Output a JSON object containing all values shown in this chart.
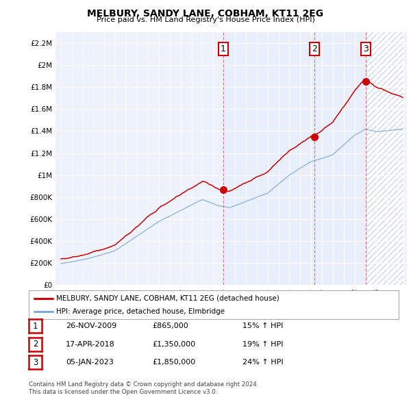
{
  "title": "MELBURY, SANDY LANE, COBHAM, KT11 2EG",
  "subtitle": "Price paid vs. HM Land Registry's House Price Index (HPI)",
  "legend_label_red": "MELBURY, SANDY LANE, COBHAM, KT11 2EG (detached house)",
  "legend_label_blue": "HPI: Average price, detached house, Elmbridge",
  "footer1": "Contains HM Land Registry data © Crown copyright and database right 2024.",
  "footer2": "This data is licensed under the Open Government Licence v3.0.",
  "ylim": [
    0,
    2300000
  ],
  "yticks": [
    0,
    200000,
    400000,
    600000,
    800000,
    1000000,
    1200000,
    1400000,
    1600000,
    1800000,
    2000000,
    2200000
  ],
  "ytick_labels": [
    "£0",
    "£200K",
    "£400K",
    "£600K",
    "£800K",
    "£1M",
    "£1.2M",
    "£1.4M",
    "£1.6M",
    "£1.8M",
    "£2M",
    "£2.2M"
  ],
  "sale_markers": [
    {
      "date_num": 2009.9,
      "price": 865000,
      "label": "1"
    },
    {
      "date_num": 2018.3,
      "price": 1350000,
      "label": "2"
    },
    {
      "date_num": 2023.0,
      "price": 1850000,
      "label": "3"
    }
  ],
  "table_rows": [
    {
      "num": "1",
      "date": "26-NOV-2009",
      "price": "£865,000",
      "hpi": "15% ↑ HPI"
    },
    {
      "num": "2",
      "date": "17-APR-2018",
      "price": "£1,350,000",
      "hpi": "19% ↑ HPI"
    },
    {
      "num": "3",
      "date": "05-JAN-2023",
      "price": "£1,850,000",
      "hpi": "24% ↑ HPI"
    }
  ],
  "red_color": "#cc0000",
  "blue_color": "#7aaadd",
  "vline_color": "#dd6666",
  "background_color": "#eef2ff",
  "shade_color": "#dde8f8",
  "hatch_color": "#c8d8ee"
}
